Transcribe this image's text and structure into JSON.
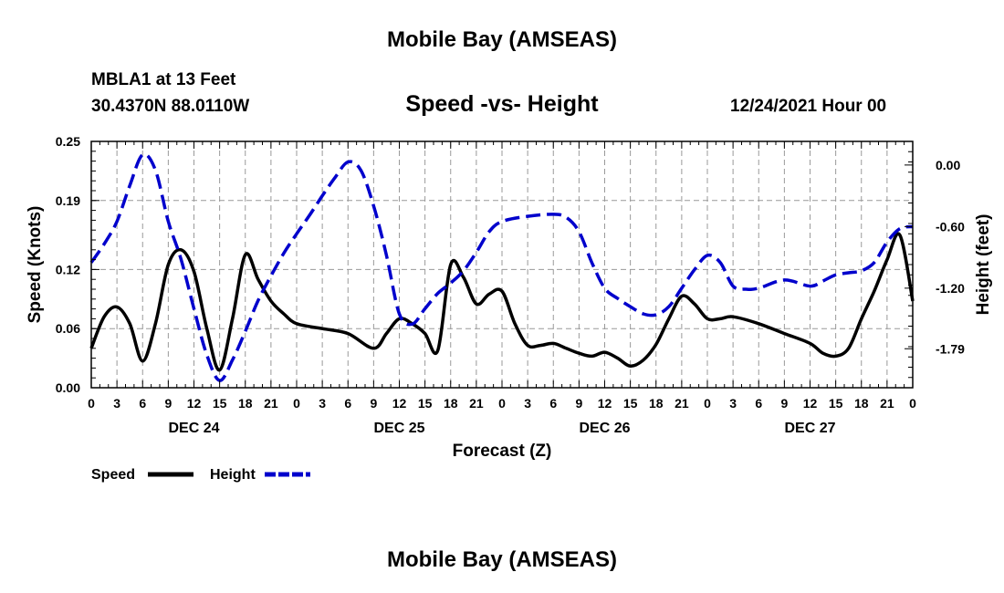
{
  "page": {
    "title": "Mobile Bay (AMSEAS)",
    "station": "MBLA1 at 13 Feet",
    "coords": "30.4370N  88.0110W",
    "chart_title": "Speed -vs- Height",
    "date": "12/24/2021 Hour 00",
    "footer_title": "Mobile Bay (AMSEAS)"
  },
  "colors": {
    "speed": "#000000",
    "height": "#0000cc",
    "grid": "#999999"
  },
  "chart_data": {
    "type": "line",
    "title": "Speed -vs- Height",
    "xlabel": "Forecast (Z)",
    "ylabel_left": "Speed (Knots)",
    "ylabel_right": "Height (feet)",
    "x_hours_range": [
      0,
      96
    ],
    "x_tick_labels": [
      "0",
      "3",
      "6",
      "9",
      "12",
      "15",
      "18",
      "21",
      "0",
      "3",
      "6",
      "9",
      "12",
      "15",
      "18",
      "21",
      "0",
      "3",
      "6",
      "9",
      "12",
      "15",
      "18",
      "21",
      "0",
      "3",
      "6",
      "9",
      "12",
      "15",
      "18",
      "21",
      "0"
    ],
    "day_labels": [
      {
        "label": "DEC 24",
        "hour": 12
      },
      {
        "label": "DEC 25",
        "hour": 36
      },
      {
        "label": "DEC 26",
        "hour": 60
      },
      {
        "label": "DEC 27",
        "hour": 84
      }
    ],
    "y_left": {
      "ticks": [
        0.0,
        0.06,
        0.12,
        0.19,
        0.25
      ],
      "tick_labels": [
        "0.00",
        "0.06",
        "0.12",
        "0.19",
        "0.25"
      ],
      "range": [
        0,
        0.25
      ]
    },
    "y_right": {
      "ticks": [
        -1.79,
        -1.2,
        -0.6,
        0.0
      ],
      "tick_labels": [
        "-1.79",
        "-1.20",
        "-0.60",
        "0.00"
      ],
      "range": [
        -2.17,
        0.23
      ]
    },
    "legend": [
      {
        "label": "Speed",
        "style": "solid"
      },
      {
        "label": "Height",
        "style": "dashed"
      }
    ],
    "series": [
      {
        "name": "Speed",
        "axis": "left",
        "style": "solid",
        "x": [
          0,
          1.5,
          3,
          4.5,
          6,
          7.5,
          9,
          10.5,
          12,
          13.5,
          15,
          16.5,
          18,
          19.5,
          21,
          22.5,
          24,
          27,
          30,
          33,
          34.5,
          36,
          37.5,
          39,
          40.5,
          42,
          43.5,
          45,
          46.5,
          48,
          49.5,
          51,
          52.5,
          54,
          55.5,
          57,
          58.5,
          60,
          61.5,
          63,
          64.5,
          66,
          67.5,
          69,
          70.5,
          72,
          73.5,
          75,
          78,
          81,
          84,
          85.5,
          87,
          88.5,
          90,
          91.5,
          93,
          94.5,
          96
        ],
        "values": [
          0.04,
          0.072,
          0.082,
          0.065,
          0.027,
          0.065,
          0.125,
          0.14,
          0.118,
          0.06,
          0.018,
          0.07,
          0.135,
          0.11,
          0.088,
          0.075,
          0.065,
          0.06,
          0.055,
          0.04,
          0.055,
          0.07,
          0.065,
          0.055,
          0.038,
          0.125,
          0.112,
          0.085,
          0.095,
          0.098,
          0.065,
          0.043,
          0.043,
          0.045,
          0.04,
          0.035,
          0.032,
          0.036,
          0.03,
          0.022,
          0.028,
          0.044,
          0.07,
          0.093,
          0.085,
          0.07,
          0.07,
          0.072,
          0.065,
          0.055,
          0.045,
          0.035,
          0.032,
          0.04,
          0.07,
          0.098,
          0.13,
          0.155,
          0.088
        ]
      },
      {
        "name": "Height",
        "axis": "right",
        "style": "dashed",
        "x": [
          0,
          1.5,
          3,
          4.5,
          6,
          7.5,
          9,
          10.5,
          12,
          13.5,
          15,
          16.5,
          18,
          19.5,
          21,
          22.5,
          24,
          25.5,
          27,
          28.5,
          30,
          31.5,
          33,
          34.5,
          36,
          37.5,
          39,
          40.5,
          42,
          43.5,
          45,
          46.5,
          48,
          51,
          54,
          55.5,
          57,
          58.5,
          60,
          61.5,
          63,
          64.5,
          66,
          67.5,
          69,
          70.5,
          72,
          73.5,
          75,
          76.5,
          78,
          81,
          84,
          85.5,
          87,
          88.5,
          90,
          91.5,
          93,
          94.5,
          96
        ],
        "values": [
          -0.95,
          -0.77,
          -0.55,
          -0.2,
          0.1,
          -0.05,
          -0.55,
          -0.92,
          -1.4,
          -1.85,
          -2.1,
          -1.9,
          -1.62,
          -1.32,
          -1.08,
          -0.86,
          -0.67,
          -0.49,
          -0.3,
          -0.12,
          0.03,
          -0.05,
          -0.4,
          -0.88,
          -1.45,
          -1.55,
          -1.4,
          -1.25,
          -1.15,
          -1.03,
          -0.85,
          -0.65,
          -0.55,
          -0.5,
          -0.48,
          -0.51,
          -0.65,
          -0.95,
          -1.2,
          -1.3,
          -1.38,
          -1.45,
          -1.46,
          -1.38,
          -1.2,
          -1.02,
          -0.88,
          -0.95,
          -1.18,
          -1.21,
          -1.2,
          -1.12,
          -1.18,
          -1.13,
          -1.07,
          -1.05,
          -1.03,
          -0.95,
          -0.75,
          -0.62,
          -0.6
        ]
      }
    ]
  }
}
